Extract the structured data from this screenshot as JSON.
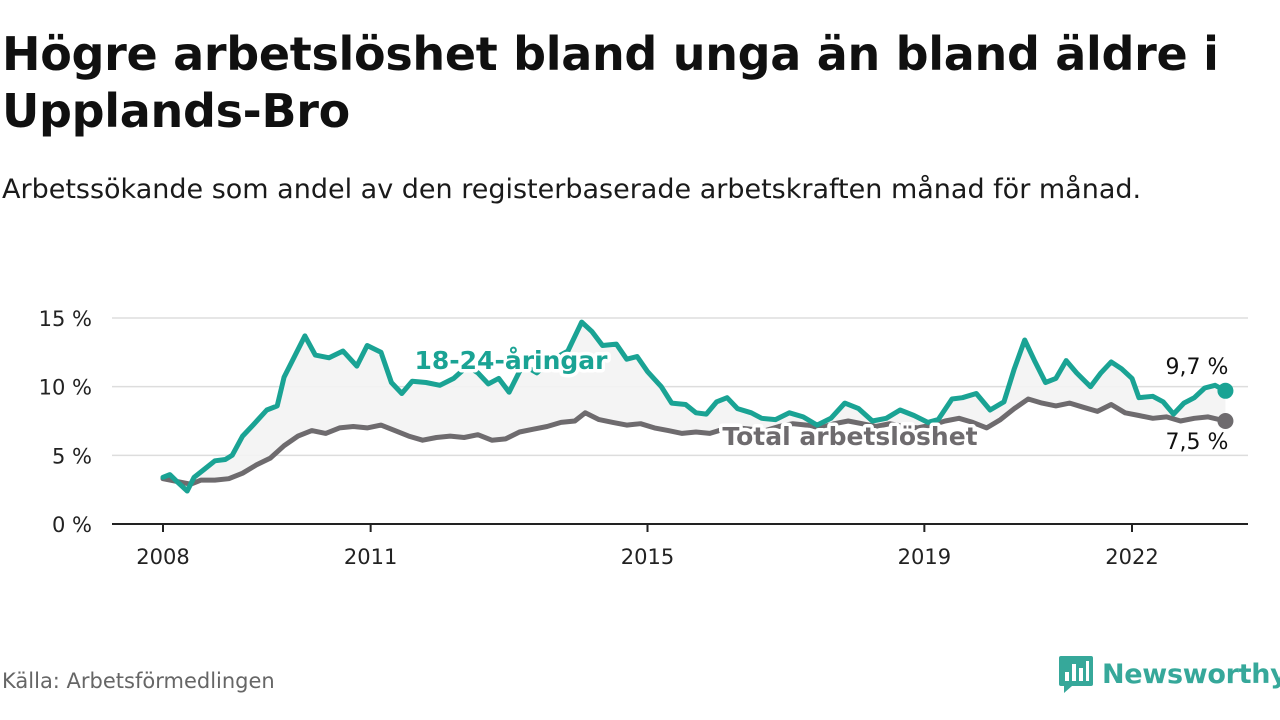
{
  "title": "Högre arbetslöshet bland unga än bland äldre i Upplands-Bro",
  "subtitle": "Arbetssökande som andel av den registerbaserade arbetskraften månad för månad.",
  "source": "Källa: Arbetsförmedlingen",
  "brand": {
    "name": "Newsworthy",
    "icon": "newsworthy-logo-icon"
  },
  "colors": {
    "young": "#1aa394",
    "total": "#6e6b6e",
    "band": "#f3f3f3",
    "grid": "#dddddd",
    "axis": "#222222"
  },
  "chart_data": {
    "type": "line",
    "ylim": [
      0,
      15
    ],
    "yticks": [
      0,
      5,
      10,
      15
    ],
    "ytick_labels": [
      "0 %",
      "5 %",
      "10 %",
      "15 %"
    ],
    "xlim": [
      2008,
      2024.7
    ],
    "xticks": [
      2008,
      2011,
      2015,
      2019,
      2022
    ],
    "xtick_labels": [
      "2008",
      "2011",
      "2015",
      "2019",
      "2022"
    ],
    "series": [
      {
        "name": "18-24-åringar",
        "end_label": "9,7 %",
        "points": [
          [
            2008.0,
            3.4
          ],
          [
            2008.1,
            3.6
          ],
          [
            2008.2,
            3.1
          ],
          [
            2008.35,
            2.4
          ],
          [
            2008.45,
            3.4
          ],
          [
            2008.6,
            4.0
          ],
          [
            2008.75,
            4.6
          ],
          [
            2008.9,
            4.7
          ],
          [
            2009.0,
            5.0
          ],
          [
            2009.15,
            6.4
          ],
          [
            2009.3,
            7.2
          ],
          [
            2009.5,
            8.3
          ],
          [
            2009.65,
            8.6
          ],
          [
            2009.75,
            10.7
          ],
          [
            2009.9,
            12.2
          ],
          [
            2010.05,
            13.7
          ],
          [
            2010.2,
            12.3
          ],
          [
            2010.4,
            12.1
          ],
          [
            2010.6,
            12.6
          ],
          [
            2010.8,
            11.5
          ],
          [
            2010.95,
            13.0
          ],
          [
            2011.15,
            12.5
          ],
          [
            2011.3,
            10.3
          ],
          [
            2011.45,
            9.5
          ],
          [
            2011.6,
            10.4
          ],
          [
            2011.8,
            10.3
          ],
          [
            2012.0,
            10.1
          ],
          [
            2012.2,
            10.6
          ],
          [
            2012.4,
            11.5
          ],
          [
            2012.55,
            11.0
          ],
          [
            2012.7,
            10.2
          ],
          [
            2012.85,
            10.6
          ],
          [
            2013.0,
            9.6
          ],
          [
            2013.2,
            11.6
          ],
          [
            2013.4,
            11.0
          ],
          [
            2013.6,
            11.9
          ],
          [
            2013.85,
            12.6
          ],
          [
            2014.05,
            14.7
          ],
          [
            2014.2,
            14.0
          ],
          [
            2014.35,
            13.0
          ],
          [
            2014.55,
            13.1
          ],
          [
            2014.7,
            12.0
          ],
          [
            2014.85,
            12.2
          ],
          [
            2015.0,
            11.1
          ],
          [
            2015.2,
            10.0
          ],
          [
            2015.35,
            8.8
          ],
          [
            2015.55,
            8.7
          ],
          [
            2015.7,
            8.1
          ],
          [
            2015.85,
            8.0
          ],
          [
            2016.0,
            8.9
          ],
          [
            2016.15,
            9.2
          ],
          [
            2016.3,
            8.4
          ],
          [
            2016.5,
            8.1
          ],
          [
            2016.65,
            7.7
          ],
          [
            2016.85,
            7.6
          ],
          [
            2017.05,
            8.1
          ],
          [
            2017.25,
            7.8
          ],
          [
            2017.45,
            7.2
          ],
          [
            2017.65,
            7.7
          ],
          [
            2017.85,
            8.8
          ],
          [
            2018.05,
            8.4
          ],
          [
            2018.25,
            7.5
          ],
          [
            2018.45,
            7.7
          ],
          [
            2018.65,
            8.3
          ],
          [
            2018.85,
            7.9
          ],
          [
            2019.05,
            7.4
          ],
          [
            2019.2,
            7.6
          ],
          [
            2019.4,
            9.1
          ],
          [
            2019.55,
            9.2
          ],
          [
            2019.75,
            9.5
          ],
          [
            2019.95,
            8.3
          ],
          [
            2020.15,
            8.9
          ],
          [
            2020.3,
            11.3
          ],
          [
            2020.45,
            13.4
          ],
          [
            2020.6,
            11.8
          ],
          [
            2020.75,
            10.3
          ],
          [
            2020.9,
            10.6
          ],
          [
            2021.05,
            11.9
          ],
          [
            2021.2,
            11.0
          ],
          [
            2021.4,
            10.0
          ],
          [
            2021.55,
            11.0
          ],
          [
            2021.7,
            11.8
          ],
          [
            2021.85,
            11.3
          ],
          [
            2022.0,
            10.6
          ],
          [
            2022.1,
            9.2
          ],
          [
            2022.3,
            9.3
          ],
          [
            2022.45,
            8.9
          ],
          [
            2022.6,
            8.0
          ],
          [
            2022.75,
            8.8
          ],
          [
            2022.9,
            9.2
          ],
          [
            2023.05,
            9.9
          ],
          [
            2023.2,
            10.1
          ],
          [
            2023.35,
            9.7
          ]
        ]
      },
      {
        "name": "Total arbetslöshet",
        "end_label": "7,5 %",
        "points": [
          [
            2008.0,
            3.3
          ],
          [
            2008.2,
            3.1
          ],
          [
            2008.4,
            2.9
          ],
          [
            2008.55,
            3.2
          ],
          [
            2008.75,
            3.2
          ],
          [
            2008.95,
            3.3
          ],
          [
            2009.15,
            3.7
          ],
          [
            2009.35,
            4.3
          ],
          [
            2009.55,
            4.8
          ],
          [
            2009.75,
            5.7
          ],
          [
            2009.95,
            6.4
          ],
          [
            2010.15,
            6.8
          ],
          [
            2010.35,
            6.6
          ],
          [
            2010.55,
            7.0
          ],
          [
            2010.75,
            7.1
          ],
          [
            2010.95,
            7.0
          ],
          [
            2011.15,
            7.2
          ],
          [
            2011.35,
            6.8
          ],
          [
            2011.55,
            6.4
          ],
          [
            2011.75,
            6.1
          ],
          [
            2011.95,
            6.3
          ],
          [
            2012.15,
            6.4
          ],
          [
            2012.35,
            6.3
          ],
          [
            2012.55,
            6.5
          ],
          [
            2012.75,
            6.1
          ],
          [
            2012.95,
            6.2
          ],
          [
            2013.15,
            6.7
          ],
          [
            2013.35,
            6.9
          ],
          [
            2013.55,
            7.1
          ],
          [
            2013.75,
            7.4
          ],
          [
            2013.95,
            7.5
          ],
          [
            2014.1,
            8.1
          ],
          [
            2014.3,
            7.6
          ],
          [
            2014.5,
            7.4
          ],
          [
            2014.7,
            7.2
          ],
          [
            2014.9,
            7.3
          ],
          [
            2015.1,
            7.0
          ],
          [
            2015.3,
            6.8
          ],
          [
            2015.5,
            6.6
          ],
          [
            2015.7,
            6.7
          ],
          [
            2015.9,
            6.6
          ],
          [
            2016.1,
            6.9
          ],
          [
            2016.3,
            7.0
          ],
          [
            2016.5,
            6.9
          ],
          [
            2016.7,
            6.8
          ],
          [
            2016.9,
            7.1
          ],
          [
            2017.1,
            7.3
          ],
          [
            2017.3,
            7.2
          ],
          [
            2017.5,
            7.0
          ],
          [
            2017.7,
            7.3
          ],
          [
            2017.9,
            7.5
          ],
          [
            2018.1,
            7.3
          ],
          [
            2018.3,
            7.1
          ],
          [
            2018.5,
            7.3
          ],
          [
            2018.7,
            7.1
          ],
          [
            2018.9,
            7.0
          ],
          [
            2019.1,
            7.2
          ],
          [
            2019.3,
            7.5
          ],
          [
            2019.5,
            7.7
          ],
          [
            2019.7,
            7.4
          ],
          [
            2019.9,
            7.0
          ],
          [
            2020.1,
            7.6
          ],
          [
            2020.3,
            8.4
          ],
          [
            2020.5,
            9.1
          ],
          [
            2020.7,
            8.8
          ],
          [
            2020.9,
            8.6
          ],
          [
            2021.1,
            8.8
          ],
          [
            2021.3,
            8.5
          ],
          [
            2021.5,
            8.2
          ],
          [
            2021.7,
            8.7
          ],
          [
            2021.9,
            8.1
          ],
          [
            2022.1,
            7.9
          ],
          [
            2022.3,
            7.7
          ],
          [
            2022.5,
            7.8
          ],
          [
            2022.7,
            7.5
          ],
          [
            2022.9,
            7.7
          ],
          [
            2023.1,
            7.8
          ],
          [
            2023.35,
            7.5
          ]
        ]
      }
    ]
  }
}
